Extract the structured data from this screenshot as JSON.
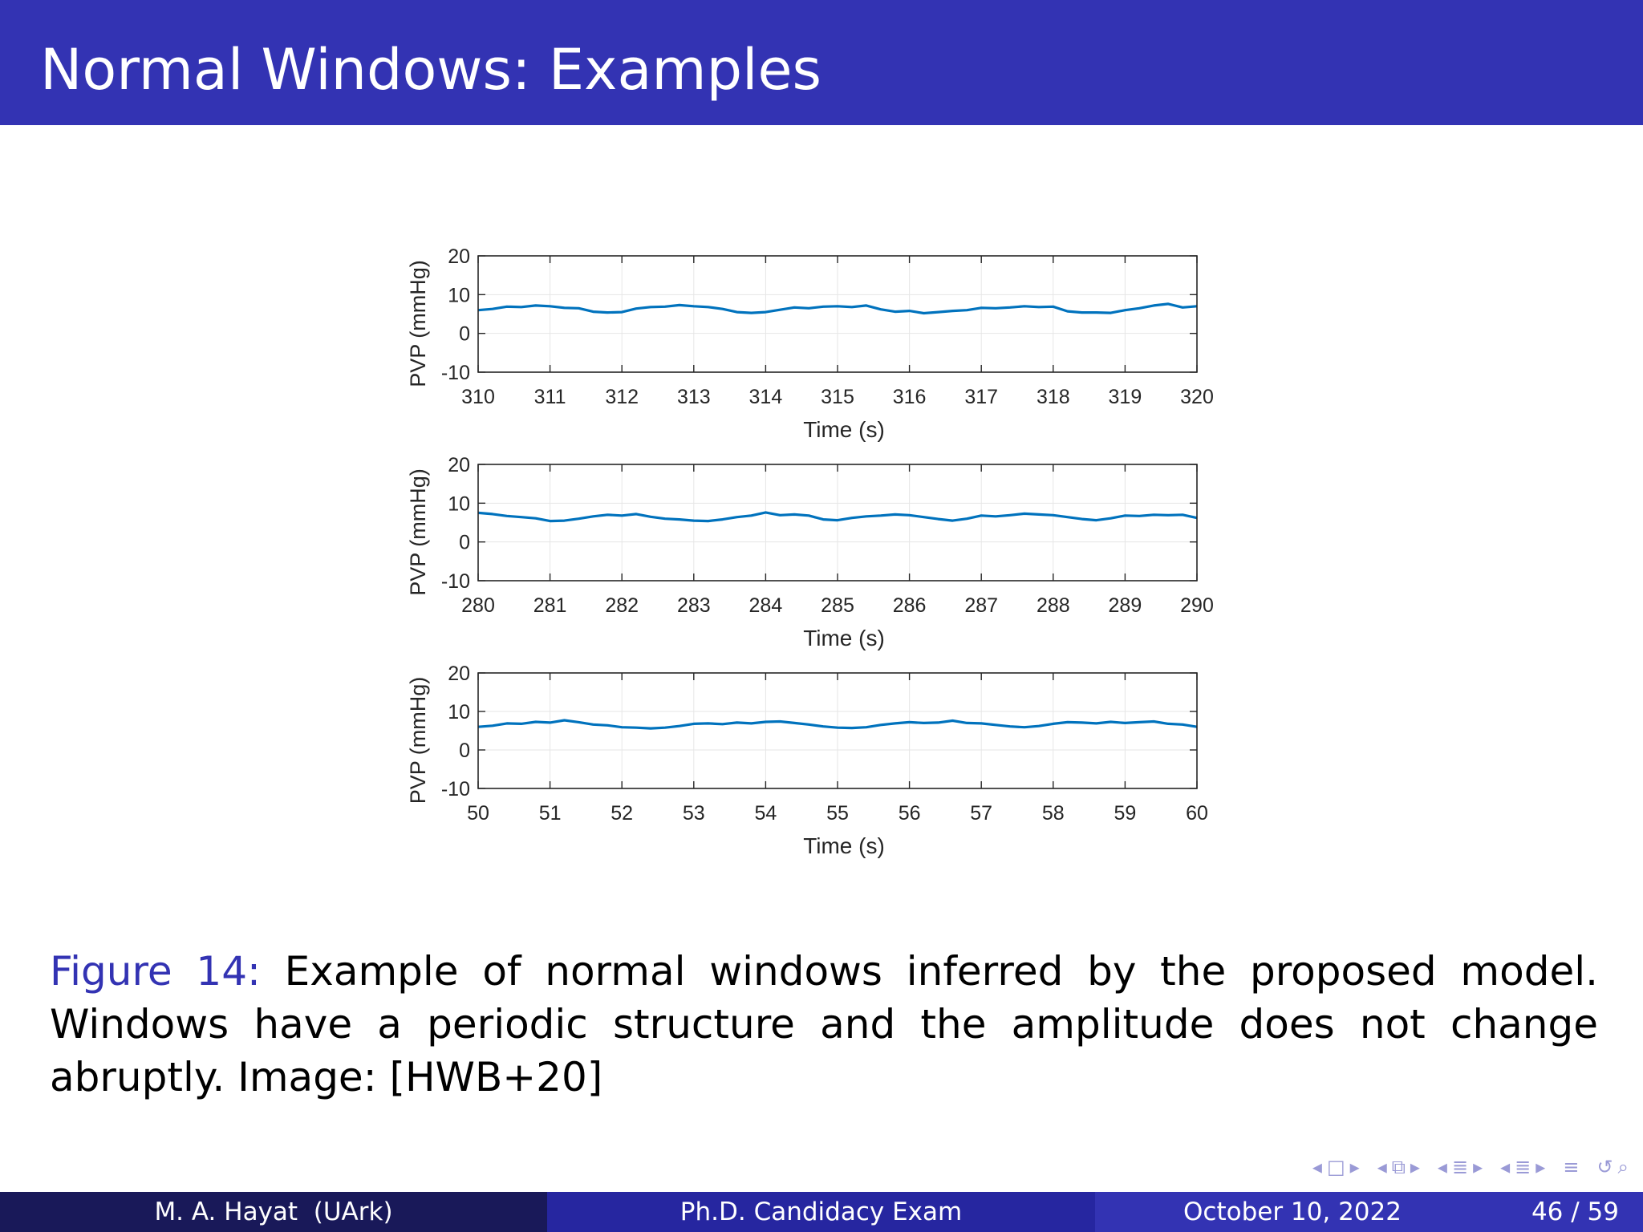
{
  "slide": {
    "title": "Normal Windows: Examples"
  },
  "caption": {
    "label": "Figure 14:",
    "text": " Example of normal windows inferred by the proposed model. Windows have a periodic structure and the amplitude does not change abruptly. Image: [HWB+20]"
  },
  "nav": {
    "icons": [
      "arrow-left-icon",
      "frame-icon",
      "arrow-right-icon",
      "arrow-left-icon",
      "subsection-icon",
      "arrow-right-icon",
      "arrow-left-icon",
      "section-align-icon",
      "arrow-right-icon",
      "arrow-left-icon",
      "section-icon",
      "arrow-right-icon",
      "align-icon",
      "undo-icon",
      "search-icon"
    ],
    "symbols": [
      "◂",
      "□",
      "▸",
      "◂",
      "⧉",
      "▸",
      "◂",
      "≣",
      "▸",
      "◂",
      "≣",
      "▸",
      "≡",
      "↺",
      "⌕"
    ]
  },
  "footer": {
    "author": "M. A. Hayat  (UArk)",
    "event": "Ph.D. Candidacy Exam",
    "date": "October 10, 2022",
    "page": "46 / 59"
  },
  "colors": {
    "title_bar": "#3333b3",
    "series_line": "#0072bd",
    "footer_dark": "#191959",
    "footer_mid": "#2626a0",
    "footer_light": "#3333b3"
  },
  "chart_data": [
    {
      "type": "line",
      "xlabel": "Time (s)",
      "ylabel": "PVP (mmHg)",
      "xlim": [
        310,
        320
      ],
      "ylim": [
        -10,
        20
      ],
      "xticks": [
        310,
        311,
        312,
        313,
        314,
        315,
        316,
        317,
        318,
        319,
        320
      ],
      "yticks": [
        -10,
        0,
        10,
        20
      ],
      "grid": true,
      "series": [
        {
          "x": [
            310,
            310.2,
            310.4,
            310.6,
            310.8,
            311,
            311.2,
            311.4,
            311.6,
            311.8,
            312,
            312.2,
            312.4,
            312.6,
            312.8,
            313,
            313.2,
            313.4,
            313.6,
            313.8,
            314,
            314.2,
            314.4,
            314.6,
            314.8,
            315,
            315.2,
            315.4,
            315.6,
            315.8,
            316,
            316.2,
            316.4,
            316.6,
            316.8,
            317,
            317.2,
            317.4,
            317.6,
            317.8,
            318,
            318.2,
            318.4,
            318.6,
            318.8,
            319,
            319.2,
            319.4,
            319.6,
            319.8,
            320
          ],
          "y": [
            6.0,
            6.3,
            6.9,
            6.8,
            7.2,
            7.0,
            6.6,
            6.5,
            5.6,
            5.4,
            5.5,
            6.4,
            6.8,
            6.9,
            7.3,
            7.0,
            6.8,
            6.3,
            5.5,
            5.3,
            5.5,
            6.1,
            6.7,
            6.5,
            6.9,
            7.0,
            6.8,
            7.2,
            6.2,
            5.6,
            5.8,
            5.2,
            5.5,
            5.8,
            6.0,
            6.6,
            6.5,
            6.7,
            7.0,
            6.8,
            6.9,
            5.7,
            5.4,
            5.4,
            5.3,
            6.0,
            6.5,
            7.2,
            7.6,
            6.7,
            7.0
          ]
        }
      ]
    },
    {
      "type": "line",
      "xlabel": "Time (s)",
      "ylabel": "PVP (mmHg)",
      "xlim": [
        280,
        290
      ],
      "ylim": [
        -10,
        20
      ],
      "xticks": [
        280,
        281,
        282,
        283,
        284,
        285,
        286,
        287,
        288,
        289,
        290
      ],
      "yticks": [
        -10,
        0,
        10,
        20
      ],
      "grid": true,
      "series": [
        {
          "x": [
            280,
            280.2,
            280.4,
            280.6,
            280.8,
            281,
            281.2,
            281.4,
            281.6,
            281.8,
            282,
            282.2,
            282.4,
            282.6,
            282.8,
            283,
            283.2,
            283.4,
            283.6,
            283.8,
            284,
            284.2,
            284.4,
            284.6,
            284.8,
            285,
            285.2,
            285.4,
            285.6,
            285.8,
            286,
            286.2,
            286.4,
            286.6,
            286.8,
            287,
            287.2,
            287.4,
            287.6,
            287.8,
            288,
            288.2,
            288.4,
            288.6,
            288.8,
            289,
            289.2,
            289.4,
            289.6,
            289.8,
            290
          ],
          "y": [
            7.5,
            7.2,
            6.7,
            6.4,
            6.1,
            5.4,
            5.5,
            6.0,
            6.6,
            7.0,
            6.8,
            7.2,
            6.5,
            6.0,
            5.8,
            5.5,
            5.4,
            5.8,
            6.4,
            6.8,
            7.6,
            6.9,
            7.1,
            6.8,
            5.8,
            5.6,
            6.2,
            6.6,
            6.8,
            7.1,
            6.9,
            6.4,
            5.9,
            5.5,
            6.0,
            6.8,
            6.6,
            6.9,
            7.3,
            7.1,
            6.9,
            6.4,
            5.9,
            5.6,
            6.1,
            6.8,
            6.7,
            7.0,
            6.9,
            7.0,
            6.2
          ]
        }
      ]
    },
    {
      "type": "line",
      "xlabel": "Time (s)",
      "ylabel": "PVP (mmHg)",
      "xlim": [
        50,
        60
      ],
      "ylim": [
        -10,
        20
      ],
      "xticks": [
        50,
        51,
        52,
        53,
        54,
        55,
        56,
        57,
        58,
        59,
        60
      ],
      "yticks": [
        -10,
        0,
        10,
        20
      ],
      "grid": true,
      "series": [
        {
          "x": [
            50,
            50.2,
            50.4,
            50.6,
            50.8,
            51,
            51.2,
            51.4,
            51.6,
            51.8,
            52,
            52.2,
            52.4,
            52.6,
            52.8,
            53,
            53.2,
            53.4,
            53.6,
            53.8,
            54,
            54.2,
            54.4,
            54.6,
            54.8,
            55,
            55.2,
            55.4,
            55.6,
            55.8,
            56,
            56.2,
            56.4,
            56.6,
            56.8,
            57,
            57.2,
            57.4,
            57.6,
            57.8,
            58,
            58.2,
            58.4,
            58.6,
            58.8,
            59,
            59.2,
            59.4,
            59.6,
            59.8,
            60
          ],
          "y": [
            6.0,
            6.3,
            6.9,
            6.8,
            7.3,
            7.1,
            7.7,
            7.2,
            6.6,
            6.4,
            5.9,
            5.8,
            5.6,
            5.8,
            6.2,
            6.8,
            6.9,
            6.7,
            7.1,
            6.9,
            7.3,
            7.4,
            7.0,
            6.6,
            6.1,
            5.8,
            5.7,
            5.9,
            6.5,
            6.9,
            7.2,
            7.0,
            7.1,
            7.6,
            7.0,
            6.9,
            6.5,
            6.1,
            5.9,
            6.2,
            6.8,
            7.2,
            7.1,
            6.9,
            7.3,
            7.0,
            7.2,
            7.4,
            6.8,
            6.6,
            6.0
          ]
        }
      ]
    }
  ]
}
